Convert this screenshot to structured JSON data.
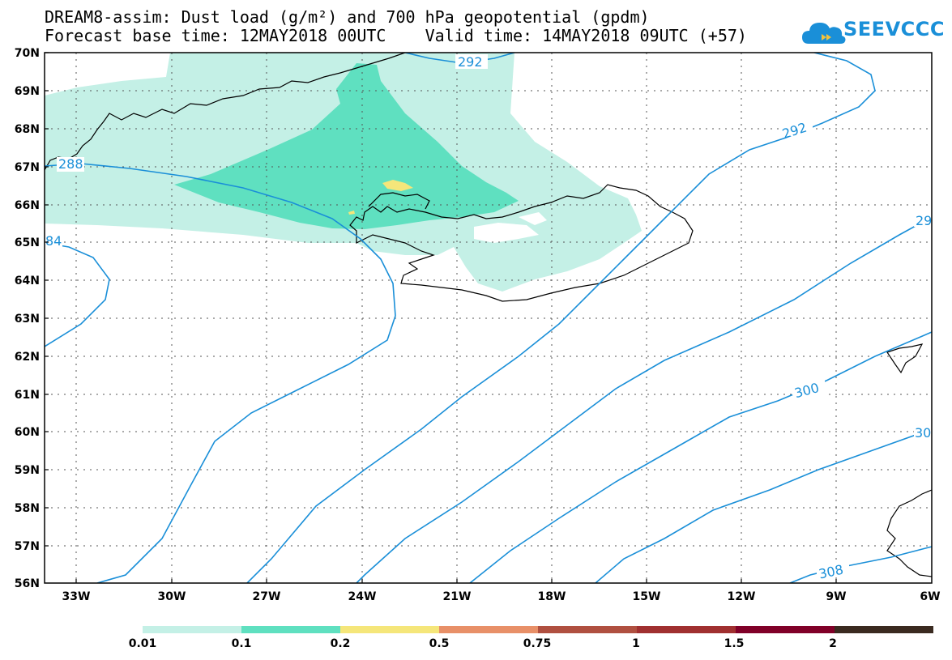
{
  "header": {
    "title_line1": "DREAM8-assim: Dust load (g/m²) and 700 hPa geopotential (gpdm)",
    "title_line2": "Forecast base time: 12MAY2018 00UTC    Valid time: 14MAY2018 09UTC (+57)"
  },
  "logo": {
    "text": "SEEVCCC",
    "icon": "cloud-icon",
    "color": "#1a8fd8"
  },
  "map": {
    "lat_labels": [
      "70N",
      "69N",
      "68N",
      "67N",
      "66N",
      "65N",
      "64N",
      "63N",
      "62N",
      "61N",
      "60N",
      "59N",
      "58N",
      "57N",
      "56N"
    ],
    "lon_labels": [
      "33W",
      "30W",
      "27W",
      "24W",
      "21W",
      "18W",
      "15W",
      "12W",
      "9W",
      "6W"
    ],
    "lat_range": [
      56,
      70
    ],
    "lon_range": [
      -34.2,
      -6
    ],
    "contour_color": "#1a8fd8",
    "contour_labels": [
      "288",
      "292",
      "292",
      "29",
      "84",
      "300",
      "30",
      "308"
    ]
  },
  "colorbar": {
    "labels": [
      "0.01",
      "0.1",
      "0.2",
      "0.5",
      "0.75",
      "1",
      "1.5",
      "2"
    ],
    "colors": [
      "#c4f0e6",
      "#5fe0c0",
      "#f5e67a",
      "#e89068",
      "#b05040",
      "#a03030",
      "#800028",
      "#3a2a20",
      "#8c6898"
    ]
  }
}
